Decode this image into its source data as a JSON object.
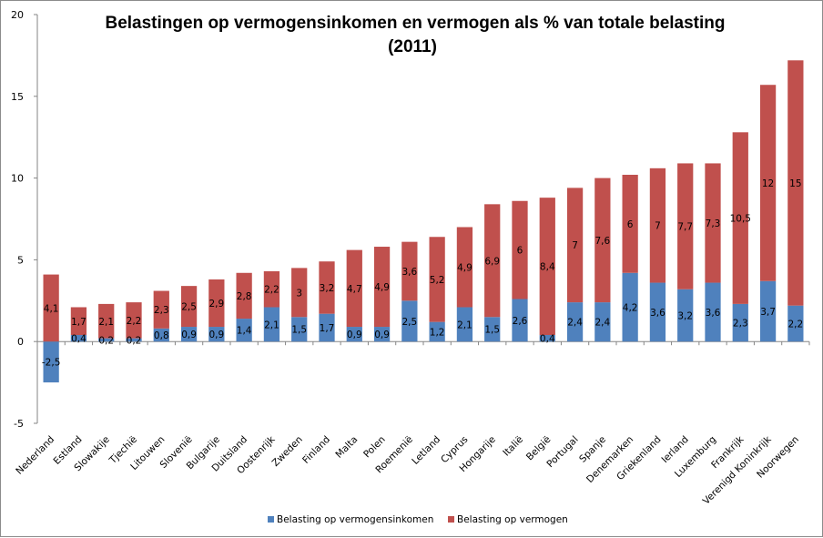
{
  "chart_data": {
    "type": "bar",
    "stacked": true,
    "title": "Belastingen op vermogensinkomen en vermogen als % van totale belasting",
    "subtitle": "(2011)",
    "xlabel": "",
    "ylabel": "",
    "ylim": [
      -5,
      20
    ],
    "yticks": [
      -5,
      0,
      5,
      10,
      15,
      20
    ],
    "legend_position": "bottom",
    "grid": false,
    "categories": [
      "Nederland",
      "Estland",
      "Slowakije",
      "Tjechië",
      "Litouwen",
      "Slovenië",
      "Bulgarije",
      "Duitsland",
      "Oostenrijk",
      "Zweden",
      "Finland",
      "Malta",
      "Polen",
      "Roemenië",
      "Letland",
      "Cyprus",
      "Hongarije",
      "Italië",
      "België",
      "Portugal",
      "Spanje",
      "Denemarken",
      "Griekenland",
      "Ierland",
      "Luxemburg",
      "Frankrijk",
      "Verenigd Koninkrijk",
      "Noorwegen"
    ],
    "series": [
      {
        "name": "Belasting op vermogensinkomen",
        "color": "#4f81bd",
        "values": [
          -2.5,
          0.4,
          0.2,
          0.2,
          0.8,
          0.9,
          0.9,
          1.4,
          2.1,
          1.5,
          1.7,
          0.9,
          0.9,
          2.5,
          1.2,
          2.1,
          1.5,
          2.6,
          0.4,
          2.4,
          2.4,
          4.2,
          3.6,
          3.2,
          3.6,
          2.3,
          3.7,
          2.2
        ],
        "labels": [
          "-2,5",
          "0,4",
          "0,2",
          "0,2",
          "0,8",
          "0,9",
          "0,9",
          "1,4",
          "2,1",
          "1,5",
          "1,7",
          "0,9",
          "0,9",
          "2,5",
          "1,2",
          "2,1",
          "1,5",
          "2,6",
          "0,4",
          "2,4",
          "2,4",
          "4,2",
          "3,6",
          "3,2",
          "3,6",
          "2,3",
          "3,7",
          "2,2"
        ]
      },
      {
        "name": "Belasting op vermogen",
        "color": "#c0504d",
        "values": [
          4.1,
          1.7,
          2.1,
          2.2,
          2.3,
          2.5,
          2.9,
          2.8,
          2.2,
          3,
          3.2,
          4.7,
          4.9,
          3.6,
          5.2,
          4.9,
          6.9,
          6,
          8.4,
          7,
          7.6,
          6,
          7,
          7.7,
          7.3,
          10.5,
          12,
          15
        ],
        "labels": [
          "4,1",
          "1,7",
          "2,1",
          "2,2",
          "2,3",
          "2,5",
          "2,9",
          "2,8",
          "2,2",
          "3",
          "3,2",
          "4,7",
          "4,9",
          "3,6",
          "5,2",
          "4,9",
          "6,9",
          "6",
          "8,4",
          "7",
          "7,6",
          "6",
          "7",
          "7,7",
          "7,3",
          "10,5",
          "12",
          "15"
        ]
      }
    ]
  }
}
